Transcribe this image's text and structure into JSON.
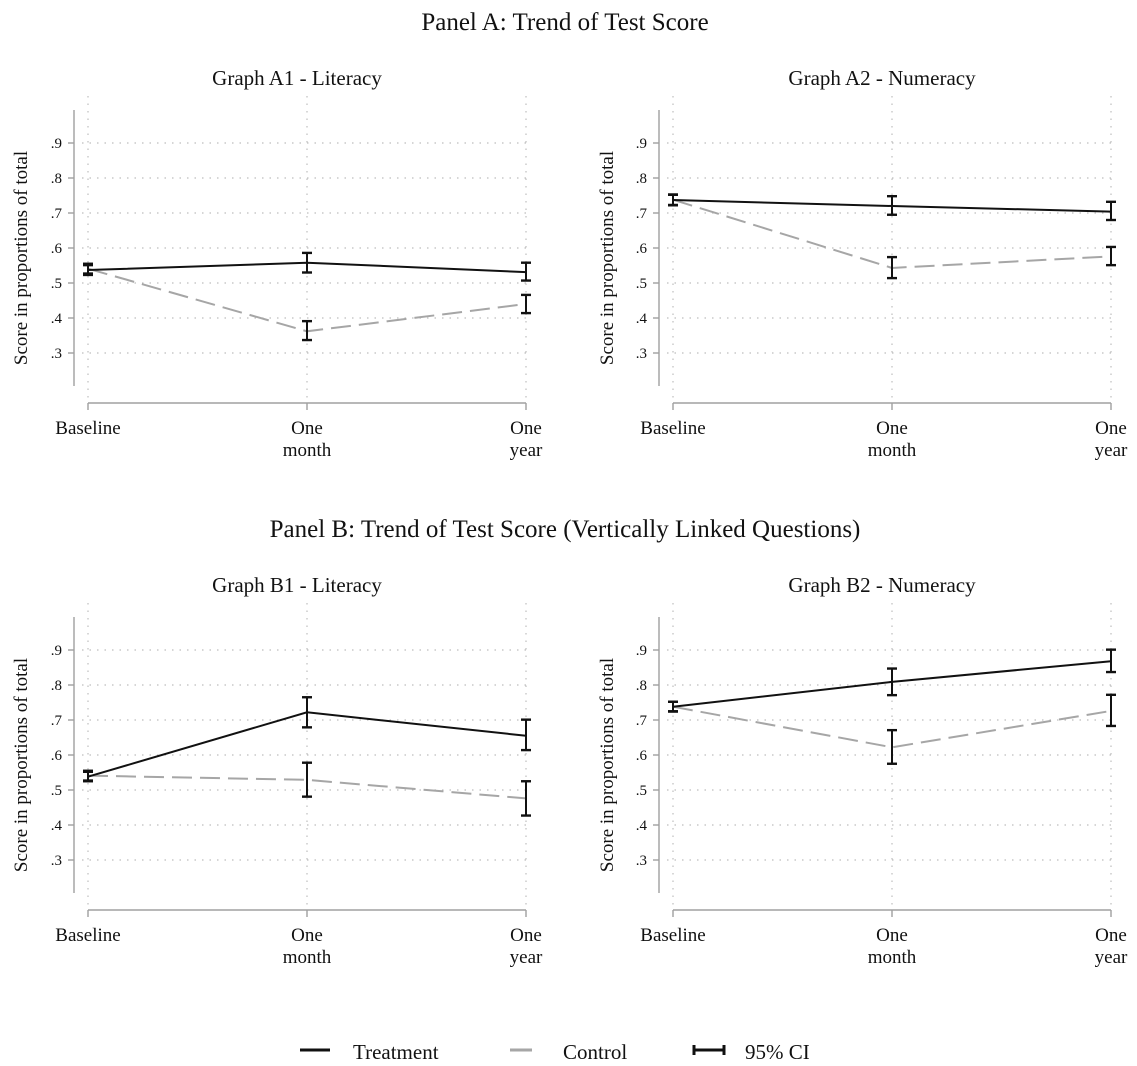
{
  "panels": [
    {
      "title": "Panel A: Trend of Test Score"
    },
    {
      "title": "Panel B: Trend of Test Score (Vertically Linked Questions)"
    }
  ],
  "legend": {
    "treatment": "Treatment",
    "control": "Control",
    "ci": "95% CI"
  },
  "colors": {
    "treatment": "#111111",
    "control": "#a6a6a6",
    "axis": "#a0a0a0",
    "grid": "#bdbdbd"
  },
  "chart_data": [
    {
      "type": "line",
      "panel": 0,
      "title": "Graph A1 - Literacy",
      "ylabel": "Score in proportions of total",
      "xlabel": "",
      "categories": [
        [
          "Baseline"
        ],
        [
          "One",
          "month"
        ],
        [
          "One",
          "year"
        ]
      ],
      "yticks": [
        ".3",
        ".4",
        ".5",
        ".6",
        ".7",
        ".8",
        ".9"
      ],
      "ylim": [
        0.2,
        1.0
      ],
      "grid": true,
      "series": [
        {
          "name": "Treatment",
          "values": [
            0.537,
            0.558,
            0.531
          ],
          "ci_low": [
            0.523,
            0.53,
            0.507
          ],
          "ci_high": [
            0.551,
            0.586,
            0.558
          ]
        },
        {
          "name": "Control",
          "values": [
            0.541,
            0.362,
            0.44
          ],
          "ci_low": [
            0.527,
            0.337,
            0.414
          ],
          "ci_high": [
            0.555,
            0.391,
            0.466
          ]
        }
      ]
    },
    {
      "type": "line",
      "panel": 0,
      "title": "Graph A2 - Numeracy",
      "ylabel": "Score in proportions of total",
      "xlabel": "",
      "categories": [
        [
          "Baseline"
        ],
        [
          "One",
          "month"
        ],
        [
          "One",
          "year"
        ]
      ],
      "yticks": [
        ".3",
        ".4",
        ".5",
        ".6",
        ".7",
        ".8",
        ".9"
      ],
      "ylim": [
        0.2,
        1.0
      ],
      "grid": true,
      "series": [
        {
          "name": "Treatment",
          "values": [
            0.737,
            0.72,
            0.704
          ],
          "ci_low": [
            0.722,
            0.695,
            0.68
          ],
          "ci_high": [
            0.752,
            0.748,
            0.732
          ]
        },
        {
          "name": "Control",
          "values": [
            0.738,
            0.543,
            0.576
          ],
          "ci_low": [
            0.723,
            0.514,
            0.551
          ],
          "ci_high": [
            0.753,
            0.574,
            0.603
          ]
        }
      ]
    },
    {
      "type": "line",
      "panel": 1,
      "title": "Graph B1 - Literacy",
      "ylabel": "Score in proportions of total",
      "xlabel": "",
      "categories": [
        [
          "Baseline"
        ],
        [
          "One",
          "month"
        ],
        [
          "One",
          "year"
        ]
      ],
      "yticks": [
        ".3",
        ".4",
        ".5",
        ".6",
        ".7",
        ".8",
        ".9"
      ],
      "ylim": [
        0.2,
        1.0
      ],
      "grid": true,
      "series": [
        {
          "name": "Treatment",
          "values": [
            0.538,
            0.722,
            0.655
          ],
          "ci_low": [
            0.525,
            0.679,
            0.614
          ],
          "ci_high": [
            0.552,
            0.765,
            0.701
          ]
        },
        {
          "name": "Control",
          "values": [
            0.541,
            0.529,
            0.476
          ],
          "ci_low": [
            0.527,
            0.481,
            0.427
          ],
          "ci_high": [
            0.555,
            0.578,
            0.525
          ]
        }
      ]
    },
    {
      "type": "line",
      "panel": 1,
      "title": "Graph B2 - Numeracy",
      "ylabel": "Score in proportions of total",
      "xlabel": "",
      "categories": [
        [
          "Baseline"
        ],
        [
          "One",
          "month"
        ],
        [
          "One",
          "year"
        ]
      ],
      "yticks": [
        ".3",
        ".4",
        ".5",
        ".6",
        ".7",
        ".8",
        ".9"
      ],
      "ylim": [
        0.2,
        1.0
      ],
      "grid": true,
      "series": [
        {
          "name": "Treatment",
          "values": [
            0.738,
            0.809,
            0.868
          ],
          "ci_low": [
            0.725,
            0.771,
            0.837
          ],
          "ci_high": [
            0.752,
            0.847,
            0.901
          ]
        },
        {
          "name": "Control",
          "values": [
            0.738,
            0.622,
            0.726
          ],
          "ci_low": [
            0.724,
            0.575,
            0.683
          ],
          "ci_high": [
            0.752,
            0.671,
            0.772
          ]
        }
      ]
    }
  ]
}
